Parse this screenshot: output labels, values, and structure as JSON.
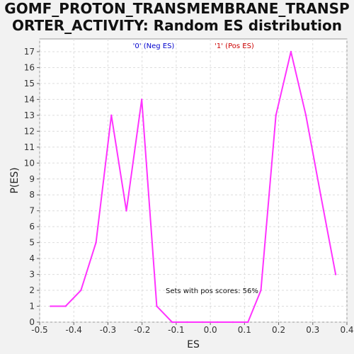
{
  "title_lines": [
    "GOMF_PROTON_TRANSMEMBRANE_TRANSP",
    "ORTER_ACTIVITY: Random ES distribution"
  ],
  "chart_data": {
    "type": "line",
    "title": "GOMF_PROTON_TRANSMEMBRANE_TRANSPORTER_ACTIVITY: Random ES distribution",
    "xlabel": "ES",
    "ylabel": "P(ES)",
    "xlim": [
      -0.5,
      0.4
    ],
    "ylim": [
      0,
      17.8
    ],
    "x_ticks": [
      "-0.5",
      "-0.4",
      "-0.3",
      "-0.2",
      "-0.1",
      "0.0",
      "0.1",
      "0.2",
      "0.3",
      "0.4"
    ],
    "y_ticks": [
      "0",
      "1",
      "2",
      "3",
      "4",
      "5",
      "6",
      "7",
      "8",
      "9",
      "10",
      "11",
      "12",
      "13",
      "14",
      "15",
      "16",
      "17"
    ],
    "grid": true,
    "legend": [
      {
        "label": "'0' (Neg ES)",
        "color": "#0000cc"
      },
      {
        "label": "'1' (Pos ES)",
        "color": "#cc0000"
      }
    ],
    "series": [
      {
        "color": "#ff33ff",
        "x": [
          -0.468,
          -0.424,
          -0.379,
          -0.335,
          -0.29,
          -0.246,
          -0.201,
          -0.157,
          -0.112,
          -0.068,
          -0.023,
          0.021,
          0.066,
          0.11,
          0.148,
          0.192,
          0.236,
          0.28,
          0.323,
          0.367
        ],
        "y": [
          1,
          1,
          2,
          5,
          13,
          7,
          14,
          1,
          0,
          0,
          0,
          0,
          0,
          0,
          2,
          13,
          17,
          13,
          8,
          3
        ]
      }
    ],
    "annotation": "Sets with pos scores: 56%"
  }
}
